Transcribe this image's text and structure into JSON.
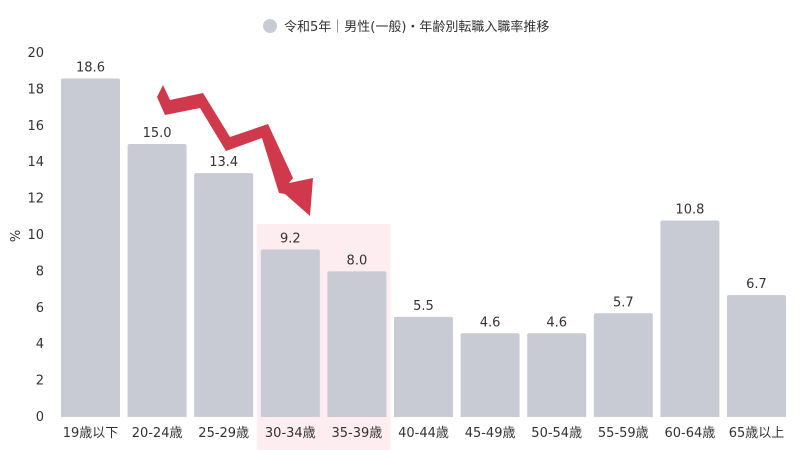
{
  "chart_data": {
    "type": "bar",
    "title": "",
    "xlabel": "",
    "ylabel": "%",
    "ylim": [
      0,
      20
    ],
    "yticks": [
      0,
      2,
      4,
      6,
      8,
      10,
      12,
      14,
      16,
      18,
      20
    ],
    "grid": false,
    "legend_position": "top-center",
    "categories": [
      "19歳以下",
      "20-24歳",
      "25-29歳",
      "30-34歳",
      "35-39歳",
      "40-44歳",
      "45-49歳",
      "50-54歳",
      "55-59歳",
      "60-64歳",
      "65歳以上"
    ],
    "series": [
      {
        "name": "令和5年｜男性(一般)・年齢別転職入職率推移",
        "values": [
          18.6,
          15.0,
          13.4,
          9.2,
          8.0,
          5.5,
          4.6,
          4.6,
          5.7,
          10.8,
          6.7
        ],
        "value_labels": [
          "18.6",
          "15.0",
          "13.4",
          "9.2",
          "8.0",
          "5.5",
          "4.6",
          "4.6",
          "5.7",
          "10.8",
          "6.7"
        ]
      }
    ],
    "highlight_categories": [
      "30-34歳",
      "35-39歳"
    ],
    "annotation": "downward-trend-arrow",
    "colors": {
      "bar": "#c8cad4",
      "highlight_band": "#fdecf0",
      "arrow": "#d0384b",
      "text": "#333333"
    }
  }
}
